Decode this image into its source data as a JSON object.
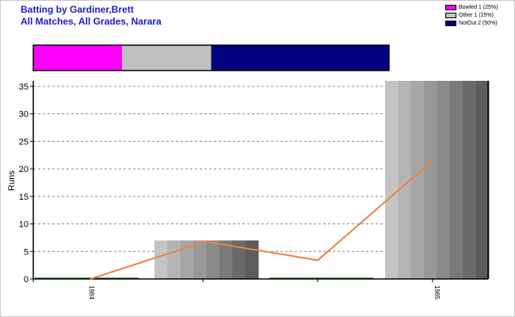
{
  "header": {
    "title_line1": "Batting by Gardiner,Brett",
    "title_line2": "All Matches, All Grades, Narara"
  },
  "legend": [
    {
      "label": "Bowled 1 (25%)",
      "color": "#ff00ff"
    },
    {
      "label": "Other 1 (25%)",
      "color": "#c0c0c0"
    },
    {
      "label": "NotOut 2 (50%)",
      "color": "#000080"
    }
  ],
  "chart_data": {
    "type": "bar",
    "ylabel": "Runs",
    "ylim": [
      0,
      36
    ],
    "yticks": [
      0,
      5,
      10,
      15,
      20,
      25,
      30,
      35
    ],
    "grid": "horizontal-dashed",
    "x_tick_labels": [
      "1984",
      "1985"
    ],
    "bars": [
      {
        "group": "1984",
        "value": 0
      },
      {
        "group": "1984",
        "value": 7
      },
      {
        "group": "1985",
        "value": 0
      },
      {
        "group": "1985",
        "value": 36
      }
    ],
    "series": [
      {
        "type": "line",
        "color": "#f08040",
        "values": [
          0,
          6.8,
          3.4,
          21.5
        ]
      }
    ],
    "dismissal_breakdown": [
      {
        "label": "Bowled",
        "count": 1,
        "percent": 25,
        "color": "#ff00ff"
      },
      {
        "label": "Other",
        "count": 1,
        "percent": 25,
        "color": "#c0c0c0"
      },
      {
        "label": "NotOut",
        "count": 2,
        "percent": 50,
        "color": "#000080"
      }
    ]
  }
}
